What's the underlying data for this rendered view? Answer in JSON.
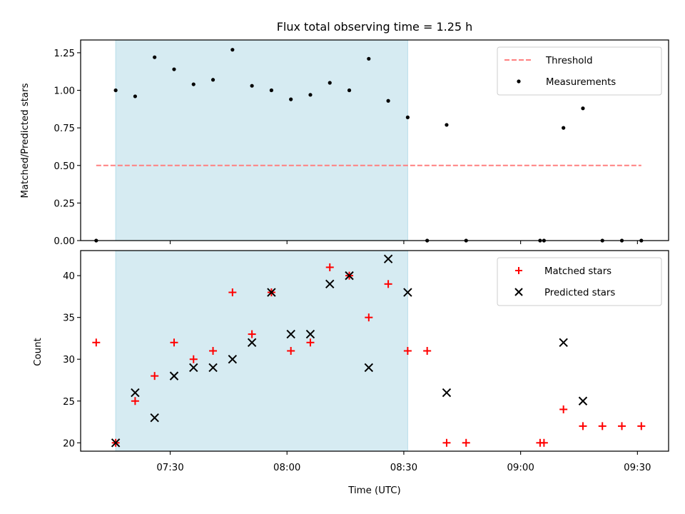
{
  "chart_data": [
    {
      "type": "scatter",
      "title": "Flux total observing time = 1.25 h",
      "xlabel": "",
      "ylabel": "Matched/Predicted stars",
      "xlim": [
        "07:07",
        "09:38"
      ],
      "ylim": [
        0,
        1.335
      ],
      "yticks": [
        0.0,
        0.25,
        0.5,
        0.75,
        1.0,
        1.25
      ],
      "ytick_labels": [
        "0.00",
        "0.25",
        "0.50",
        "0.75",
        "1.00",
        "1.25"
      ],
      "shaded_interval": [
        "07:16",
        "08:31"
      ],
      "shade_color": "#add8e6",
      "grid": false,
      "legend_position": "upper right",
      "threshold": {
        "name": "Threshold",
        "value": 0.5,
        "x_start": "07:11",
        "x_end": "09:31",
        "color": "#ff8080",
        "style": "dashed"
      },
      "series": [
        {
          "name": "Measurements",
          "marker": "dot",
          "color": "#000000",
          "points": [
            {
              "x": "07:11",
              "y": 0.0
            },
            {
              "x": "07:16",
              "y": 1.0
            },
            {
              "x": "07:21",
              "y": 0.96
            },
            {
              "x": "07:26",
              "y": 1.22
            },
            {
              "x": "07:31",
              "y": 1.14
            },
            {
              "x": "07:36",
              "y": 1.04
            },
            {
              "x": "07:41",
              "y": 1.07
            },
            {
              "x": "07:46",
              "y": 1.27
            },
            {
              "x": "07:51",
              "y": 1.03
            },
            {
              "x": "07:56",
              "y": 1.0
            },
            {
              "x": "08:01",
              "y": 0.94
            },
            {
              "x": "08:06",
              "y": 0.97
            },
            {
              "x": "08:11",
              "y": 1.05
            },
            {
              "x": "08:16",
              "y": 1.0
            },
            {
              "x": "08:21",
              "y": 1.21
            },
            {
              "x": "08:26",
              "y": 0.93
            },
            {
              "x": "08:31",
              "y": 0.82
            },
            {
              "x": "08:36",
              "y": 0.0
            },
            {
              "x": "08:41",
              "y": 0.77
            },
            {
              "x": "08:46",
              "y": 0.0
            },
            {
              "x": "09:05",
              "y": 0.0
            },
            {
              "x": "09:06",
              "y": 0.0
            },
            {
              "x": "09:11",
              "y": 0.75
            },
            {
              "x": "09:16",
              "y": 0.88
            },
            {
              "x": "09:21",
              "y": 0.0
            },
            {
              "x": "09:26",
              "y": 0.0
            },
            {
              "x": "09:31",
              "y": 0.0
            }
          ]
        }
      ]
    },
    {
      "type": "scatter",
      "title": "",
      "xlabel": "Time (UTC)",
      "ylabel": "Count",
      "xlim": [
        "07:07",
        "09:38"
      ],
      "ylim": [
        19,
        43
      ],
      "yticks": [
        20,
        25,
        30,
        35,
        40
      ],
      "ytick_labels": [
        "20",
        "25",
        "30",
        "35",
        "40"
      ],
      "xticks": [
        "07:30",
        "08:00",
        "08:30",
        "09:00",
        "09:30"
      ],
      "xtick_labels": [
        "07:30",
        "08:00",
        "08:30",
        "09:00",
        "09:30"
      ],
      "shaded_interval": [
        "07:16",
        "08:31"
      ],
      "shade_color": "#add8e6",
      "grid": false,
      "legend_position": "upper right",
      "series": [
        {
          "name": "Matched stars",
          "marker": "plus",
          "color": "#ff0000",
          "points": [
            {
              "x": "07:11",
              "y": 32
            },
            {
              "x": "07:16",
              "y": 20
            },
            {
              "x": "07:21",
              "y": 25
            },
            {
              "x": "07:26",
              "y": 28
            },
            {
              "x": "07:31",
              "y": 32
            },
            {
              "x": "07:36",
              "y": 30
            },
            {
              "x": "07:41",
              "y": 31
            },
            {
              "x": "07:46",
              "y": 38
            },
            {
              "x": "07:51",
              "y": 33
            },
            {
              "x": "07:56",
              "y": 38
            },
            {
              "x": "08:01",
              "y": 31
            },
            {
              "x": "08:06",
              "y": 32
            },
            {
              "x": "08:11",
              "y": 41
            },
            {
              "x": "08:16",
              "y": 40
            },
            {
              "x": "08:21",
              "y": 35
            },
            {
              "x": "08:26",
              "y": 39
            },
            {
              "x": "08:31",
              "y": 31
            },
            {
              "x": "08:36",
              "y": 31
            },
            {
              "x": "08:41",
              "y": 20
            },
            {
              "x": "08:46",
              "y": 20
            },
            {
              "x": "09:05",
              "y": 20
            },
            {
              "x": "09:06",
              "y": 20
            },
            {
              "x": "09:11",
              "y": 24
            },
            {
              "x": "09:16",
              "y": 22
            },
            {
              "x": "09:21",
              "y": 22
            },
            {
              "x": "09:26",
              "y": 22
            },
            {
              "x": "09:31",
              "y": 22
            }
          ]
        },
        {
          "name": "Predicted stars",
          "marker": "x",
          "color": "#000000",
          "points": [
            {
              "x": "07:16",
              "y": 20
            },
            {
              "x": "07:21",
              "y": 26
            },
            {
              "x": "07:26",
              "y": 23
            },
            {
              "x": "07:31",
              "y": 28
            },
            {
              "x": "07:36",
              "y": 29
            },
            {
              "x": "07:41",
              "y": 29
            },
            {
              "x": "07:46",
              "y": 30
            },
            {
              "x": "07:51",
              "y": 32
            },
            {
              "x": "07:56",
              "y": 38
            },
            {
              "x": "08:01",
              "y": 33
            },
            {
              "x": "08:06",
              "y": 33
            },
            {
              "x": "08:11",
              "y": 39
            },
            {
              "x": "08:16",
              "y": 40
            },
            {
              "x": "08:21",
              "y": 29
            },
            {
              "x": "08:26",
              "y": 42
            },
            {
              "x": "08:31",
              "y": 38
            },
            {
              "x": "08:41",
              "y": 26
            },
            {
              "x": "09:11",
              "y": 32
            },
            {
              "x": "09:16",
              "y": 25
            }
          ]
        }
      ]
    }
  ]
}
